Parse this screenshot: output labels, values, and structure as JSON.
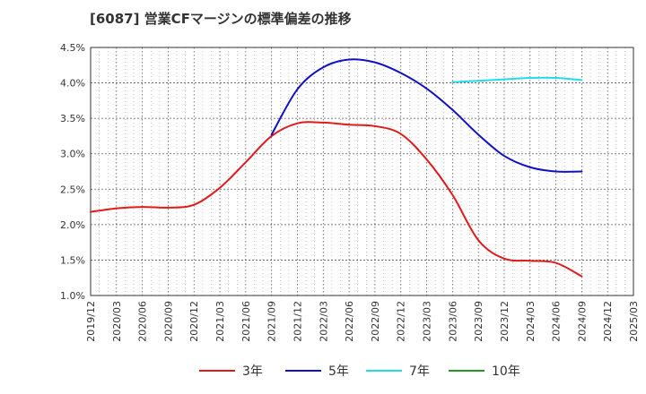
{
  "title": "[6087]  営業CFマージンの標準偏差の推移",
  "chart_data": {
    "type": "line",
    "title": "[6087]  営業CFマージンの標準偏差の推移",
    "xlabel": "",
    "ylabel": "",
    "ylim": [
      1.0,
      4.5
    ],
    "yticks": [
      "1.0%",
      "1.5%",
      "2.0%",
      "2.5%",
      "3.0%",
      "3.5%",
      "4.0%",
      "4.5%"
    ],
    "x_categories": [
      "2019/12",
      "2020/03",
      "2020/06",
      "2020/09",
      "2020/12",
      "2021/03",
      "2021/06",
      "2021/09",
      "2021/12",
      "2022/03",
      "2022/06",
      "2022/09",
      "2022/12",
      "2023/03",
      "2023/06",
      "2023/09",
      "2023/12",
      "2024/03",
      "2024/06",
      "2024/09",
      "2024/12",
      "2025/03"
    ],
    "grid": true,
    "legend_position": "bottom",
    "series": [
      {
        "name": "3年",
        "color": "#e01b1b",
        "x": [
          "2019/12",
          "2020/03",
          "2020/06",
          "2020/09",
          "2020/12",
          "2021/03",
          "2021/06",
          "2021/09",
          "2021/12",
          "2022/03",
          "2022/06",
          "2022/09",
          "2022/12",
          "2023/03",
          "2023/06",
          "2023/09",
          "2023/12",
          "2024/03",
          "2024/06",
          "2024/09"
        ],
        "values": [
          2.18,
          2.23,
          2.25,
          2.24,
          2.28,
          2.52,
          2.88,
          3.25,
          3.43,
          3.44,
          3.41,
          3.39,
          3.28,
          2.92,
          2.42,
          1.78,
          1.52,
          1.49,
          1.46,
          1.27
        ]
      },
      {
        "name": "5年",
        "color": "#1010c8",
        "x": [
          "2021/09",
          "2021/12",
          "2022/03",
          "2022/06",
          "2022/09",
          "2022/12",
          "2023/03",
          "2023/06",
          "2023/09",
          "2023/12",
          "2024/03",
          "2024/06",
          "2024/09"
        ],
        "values": [
          3.27,
          3.91,
          4.22,
          4.33,
          4.29,
          4.14,
          3.92,
          3.62,
          3.27,
          2.97,
          2.81,
          2.75,
          2.75
        ]
      },
      {
        "name": "7年",
        "color": "#22dcee",
        "x": [
          "2023/06",
          "2023/09",
          "2023/12",
          "2024/03",
          "2024/06",
          "2024/09"
        ],
        "values": [
          4.01,
          4.03,
          4.05,
          4.07,
          4.07,
          4.04
        ]
      },
      {
        "name": "10年",
        "color": "#229922",
        "x": [],
        "values": []
      }
    ]
  }
}
